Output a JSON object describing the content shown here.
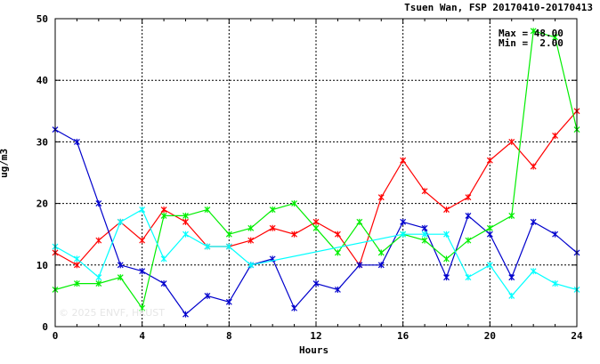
{
  "chart_data": {
    "type": "line",
    "title": "Tsuen Wan, FSP 20170410-20170413",
    "xlabel": "Hours",
    "ylabel": "ug/m3",
    "xlim": [
      0,
      24
    ],
    "ylim": [
      0,
      50
    ],
    "xticks": [
      0,
      4,
      8,
      12,
      16,
      20,
      24
    ],
    "yticks": [
      0,
      10,
      20,
      30,
      40,
      50
    ],
    "grid": "dashed",
    "stats": {
      "max_label": "Max = 48.00",
      "min_label": "Min =  2.00"
    },
    "watermark": "© 2025  ENVF, HKUST",
    "series": [
      {
        "color": "#ff0000",
        "x": [
          0,
          1,
          2,
          3,
          4,
          5,
          6,
          7,
          8,
          9,
          10,
          11,
          12,
          13,
          14,
          15,
          16,
          17,
          18,
          19,
          20,
          21,
          22,
          23,
          24
        ],
        "values": [
          12,
          10,
          14,
          17,
          14,
          19,
          17,
          13,
          13,
          14,
          16,
          15,
          17,
          15,
          10,
          21,
          27,
          22,
          19,
          21,
          27,
          30,
          26,
          31,
          35
        ]
      },
      {
        "color": "#0000cc",
        "x": [
          0,
          1,
          2,
          3,
          4,
          5,
          6,
          7,
          8,
          9,
          10,
          11,
          12,
          13,
          14,
          15,
          16,
          17,
          18,
          19,
          20,
          21,
          22,
          23,
          24
        ],
        "values": [
          32,
          30,
          20,
          10,
          9,
          7,
          2,
          5,
          4,
          10,
          11,
          3,
          7,
          6,
          10,
          10,
          17,
          16,
          8,
          18,
          15,
          8,
          17,
          15,
          12
        ]
      },
      {
        "color": "#00ee00",
        "x": [
          0,
          1,
          2,
          3,
          4,
          5,
          6,
          7,
          8,
          9,
          10,
          11,
          12,
          13,
          14,
          15,
          16,
          17,
          18,
          19,
          20,
          21,
          22,
          23,
          24
        ],
        "values": [
          6,
          7,
          7,
          8,
          3,
          18,
          18,
          19,
          15,
          16,
          19,
          20,
          16,
          12,
          17,
          12,
          15,
          14,
          11,
          14,
          16,
          18,
          48,
          47,
          32
        ]
      },
      {
        "color": "#00ffff",
        "x": [
          0,
          1,
          2,
          3,
          4,
          5,
          6,
          7,
          8,
          9,
          16,
          17,
          18,
          19,
          20,
          21,
          22,
          23,
          24
        ],
        "values": [
          13,
          11,
          8,
          17,
          19,
          11,
          15,
          13,
          13,
          10,
          15,
          15,
          15,
          8,
          10,
          5,
          9,
          7,
          6
        ]
      }
    ]
  }
}
